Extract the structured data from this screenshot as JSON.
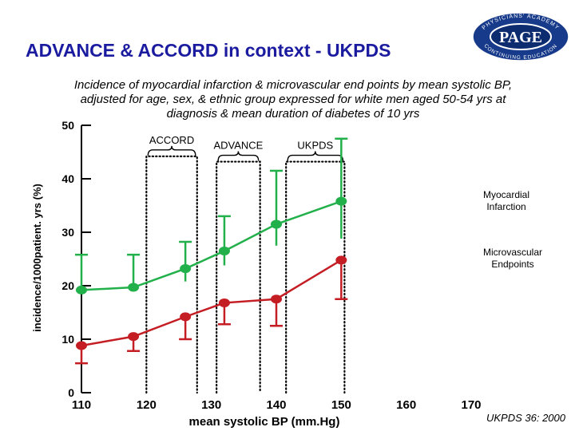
{
  "slide": {
    "title": "ADVANCE & ACCORD in context - UKPDS",
    "subtitle_lines": [
      "Incidence of myocardial infarction & microvascular end points by mean systolic BP,",
      "adjusted for age, sex, & ethnic group expressed for white men aged 50-54 yrs at",
      "diagnosis & mean duration of diabetes of 10 yrs"
    ],
    "citation": "UKPDS 36: 2000",
    "logo": {
      "name": "PAGE",
      "ring_top": "PHYSICIANS' ACADEMY",
      "ring_bottom": "CONTINUING EDUCATION"
    }
  },
  "colors": {
    "title": "#1b1ba0",
    "myocardial_infarction": "#22b04a",
    "microvascular": "#c41e24",
    "box": "#000000"
  },
  "chart_data": {
    "type": "line",
    "xlabel": "mean systolic BP (mm.Hg)",
    "ylabel": "incidence/1000patient. yrs (%)",
    "xlim": [
      110,
      170
    ],
    "ylim": [
      0,
      50
    ],
    "x_ticks": [
      110,
      120,
      130,
      140,
      150,
      160,
      170
    ],
    "y_ticks": [
      0,
      10,
      20,
      30,
      40,
      50
    ],
    "grid": false,
    "series": [
      {
        "name": "Myocardial Infarction",
        "color": "#22b04a",
        "label_lines": [
          "Myocardial",
          "Infarction"
        ],
        "points": [
          {
            "x": 110,
            "y": 19.2,
            "lo": 19.2,
            "hi": 25.8
          },
          {
            "x": 118,
            "y": 19.7,
            "lo": 19.7,
            "hi": 25.8
          },
          {
            "x": 126,
            "y": 23.2,
            "lo": 20.8,
            "hi": 28.2
          },
          {
            "x": 132,
            "y": 26.5,
            "lo": 23.8,
            "hi": 33.0
          },
          {
            "x": 140,
            "y": 31.5,
            "lo": 27.5,
            "hi": 41.5
          },
          {
            "x": 150,
            "y": 35.8,
            "lo": 28.8,
            "hi": 47.5
          }
        ]
      },
      {
        "name": "Microvascular Endpoints",
        "color": "#c41e24",
        "label_lines": [
          "Microvascular",
          "Endpoints"
        ],
        "points": [
          {
            "x": 110,
            "y": 8.8,
            "lo": 5.5,
            "hi": 8.8
          },
          {
            "x": 118,
            "y": 10.5,
            "lo": 7.8,
            "hi": 10.5
          },
          {
            "x": 126,
            "y": 14.2,
            "lo": 10.0,
            "hi": 14.2
          },
          {
            "x": 132,
            "y": 16.8,
            "lo": 12.8,
            "hi": 16.8
          },
          {
            "x": 140,
            "y": 17.5,
            "lo": 12.5,
            "hi": 17.5
          },
          {
            "x": 150,
            "y": 24.8,
            "lo": 17.5,
            "hi": 24.8
          }
        ]
      }
    ],
    "brackets": [
      {
        "label": "ACCORD",
        "x_from": 120.0,
        "x_to": 127.8,
        "y_top": 44.2,
        "y_bottom": 0
      },
      {
        "label": "ADVANCE",
        "x_from": 130.8,
        "x_to": 137.5,
        "y_top": 43.2,
        "y_bottom": 0
      },
      {
        "label": "UKPDS",
        "x_from": 141.5,
        "x_to": 150.5,
        "y_top": 43.2,
        "y_bottom": 0
      }
    ]
  }
}
